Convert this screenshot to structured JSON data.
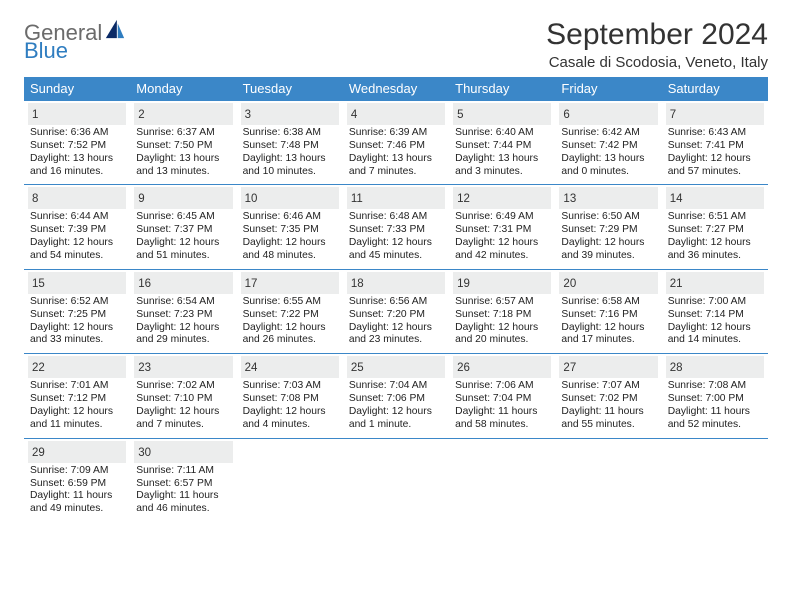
{
  "brand": {
    "word1": "General",
    "word2": "Blue"
  },
  "title": "September 2024",
  "location": "Casale di Scodosia, Veneto, Italy",
  "colors": {
    "header_bg": "#3b87c8",
    "header_text": "#ffffff",
    "daynum_bg": "#eceded",
    "divider": "#3b87c8",
    "logo_gray": "#6b6b6b",
    "logo_blue": "#2f7dc0"
  },
  "day_names": [
    "Sunday",
    "Monday",
    "Tuesday",
    "Wednesday",
    "Thursday",
    "Friday",
    "Saturday"
  ],
  "weeks": [
    [
      {
        "d": "1",
        "l1": "Sunrise: 6:36 AM",
        "l2": "Sunset: 7:52 PM",
        "l3": "Daylight: 13 hours",
        "l4": "and 16 minutes."
      },
      {
        "d": "2",
        "l1": "Sunrise: 6:37 AM",
        "l2": "Sunset: 7:50 PM",
        "l3": "Daylight: 13 hours",
        "l4": "and 13 minutes."
      },
      {
        "d": "3",
        "l1": "Sunrise: 6:38 AM",
        "l2": "Sunset: 7:48 PM",
        "l3": "Daylight: 13 hours",
        "l4": "and 10 minutes."
      },
      {
        "d": "4",
        "l1": "Sunrise: 6:39 AM",
        "l2": "Sunset: 7:46 PM",
        "l3": "Daylight: 13 hours",
        "l4": "and 7 minutes."
      },
      {
        "d": "5",
        "l1": "Sunrise: 6:40 AM",
        "l2": "Sunset: 7:44 PM",
        "l3": "Daylight: 13 hours",
        "l4": "and 3 minutes."
      },
      {
        "d": "6",
        "l1": "Sunrise: 6:42 AM",
        "l2": "Sunset: 7:42 PM",
        "l3": "Daylight: 13 hours",
        "l4": "and 0 minutes."
      },
      {
        "d": "7",
        "l1": "Sunrise: 6:43 AM",
        "l2": "Sunset: 7:41 PM",
        "l3": "Daylight: 12 hours",
        "l4": "and 57 minutes."
      }
    ],
    [
      {
        "d": "8",
        "l1": "Sunrise: 6:44 AM",
        "l2": "Sunset: 7:39 PM",
        "l3": "Daylight: 12 hours",
        "l4": "and 54 minutes."
      },
      {
        "d": "9",
        "l1": "Sunrise: 6:45 AM",
        "l2": "Sunset: 7:37 PM",
        "l3": "Daylight: 12 hours",
        "l4": "and 51 minutes."
      },
      {
        "d": "10",
        "l1": "Sunrise: 6:46 AM",
        "l2": "Sunset: 7:35 PM",
        "l3": "Daylight: 12 hours",
        "l4": "and 48 minutes."
      },
      {
        "d": "11",
        "l1": "Sunrise: 6:48 AM",
        "l2": "Sunset: 7:33 PM",
        "l3": "Daylight: 12 hours",
        "l4": "and 45 minutes."
      },
      {
        "d": "12",
        "l1": "Sunrise: 6:49 AM",
        "l2": "Sunset: 7:31 PM",
        "l3": "Daylight: 12 hours",
        "l4": "and 42 minutes."
      },
      {
        "d": "13",
        "l1": "Sunrise: 6:50 AM",
        "l2": "Sunset: 7:29 PM",
        "l3": "Daylight: 12 hours",
        "l4": "and 39 minutes."
      },
      {
        "d": "14",
        "l1": "Sunrise: 6:51 AM",
        "l2": "Sunset: 7:27 PM",
        "l3": "Daylight: 12 hours",
        "l4": "and 36 minutes."
      }
    ],
    [
      {
        "d": "15",
        "l1": "Sunrise: 6:52 AM",
        "l2": "Sunset: 7:25 PM",
        "l3": "Daylight: 12 hours",
        "l4": "and 33 minutes."
      },
      {
        "d": "16",
        "l1": "Sunrise: 6:54 AM",
        "l2": "Sunset: 7:23 PM",
        "l3": "Daylight: 12 hours",
        "l4": "and 29 minutes."
      },
      {
        "d": "17",
        "l1": "Sunrise: 6:55 AM",
        "l2": "Sunset: 7:22 PM",
        "l3": "Daylight: 12 hours",
        "l4": "and 26 minutes."
      },
      {
        "d": "18",
        "l1": "Sunrise: 6:56 AM",
        "l2": "Sunset: 7:20 PM",
        "l3": "Daylight: 12 hours",
        "l4": "and 23 minutes."
      },
      {
        "d": "19",
        "l1": "Sunrise: 6:57 AM",
        "l2": "Sunset: 7:18 PM",
        "l3": "Daylight: 12 hours",
        "l4": "and 20 minutes."
      },
      {
        "d": "20",
        "l1": "Sunrise: 6:58 AM",
        "l2": "Sunset: 7:16 PM",
        "l3": "Daylight: 12 hours",
        "l4": "and 17 minutes."
      },
      {
        "d": "21",
        "l1": "Sunrise: 7:00 AM",
        "l2": "Sunset: 7:14 PM",
        "l3": "Daylight: 12 hours",
        "l4": "and 14 minutes."
      }
    ],
    [
      {
        "d": "22",
        "l1": "Sunrise: 7:01 AM",
        "l2": "Sunset: 7:12 PM",
        "l3": "Daylight: 12 hours",
        "l4": "and 11 minutes."
      },
      {
        "d": "23",
        "l1": "Sunrise: 7:02 AM",
        "l2": "Sunset: 7:10 PM",
        "l3": "Daylight: 12 hours",
        "l4": "and 7 minutes."
      },
      {
        "d": "24",
        "l1": "Sunrise: 7:03 AM",
        "l2": "Sunset: 7:08 PM",
        "l3": "Daylight: 12 hours",
        "l4": "and 4 minutes."
      },
      {
        "d": "25",
        "l1": "Sunrise: 7:04 AM",
        "l2": "Sunset: 7:06 PM",
        "l3": "Daylight: 12 hours",
        "l4": "and 1 minute."
      },
      {
        "d": "26",
        "l1": "Sunrise: 7:06 AM",
        "l2": "Sunset: 7:04 PM",
        "l3": "Daylight: 11 hours",
        "l4": "and 58 minutes."
      },
      {
        "d": "27",
        "l1": "Sunrise: 7:07 AM",
        "l2": "Sunset: 7:02 PM",
        "l3": "Daylight: 11 hours",
        "l4": "and 55 minutes."
      },
      {
        "d": "28",
        "l1": "Sunrise: 7:08 AM",
        "l2": "Sunset: 7:00 PM",
        "l3": "Daylight: 11 hours",
        "l4": "and 52 minutes."
      }
    ],
    [
      {
        "d": "29",
        "l1": "Sunrise: 7:09 AM",
        "l2": "Sunset: 6:59 PM",
        "l3": "Daylight: 11 hours",
        "l4": "and 49 minutes."
      },
      {
        "d": "30",
        "l1": "Sunrise: 7:11 AM",
        "l2": "Sunset: 6:57 PM",
        "l3": "Daylight: 11 hours",
        "l4": "and 46 minutes."
      },
      {
        "empty": true
      },
      {
        "empty": true
      },
      {
        "empty": true
      },
      {
        "empty": true
      },
      {
        "empty": true
      }
    ]
  ]
}
